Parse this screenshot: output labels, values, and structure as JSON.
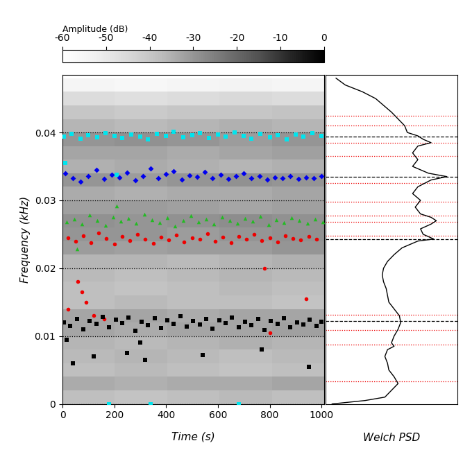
{
  "chart_data": [
    {
      "type": "heatmap_scatter",
      "xlabel": "Time (s)",
      "ylabel": "Frequency (kHz)",
      "xlim": [
        0,
        1010
      ],
      "ylim": [
        0,
        0.0485
      ],
      "xticks": [
        0,
        200,
        400,
        600,
        800,
        1000
      ],
      "yticks": [
        0,
        0.01,
        0.02,
        0.03,
        0.04
      ],
      "grid": "y",
      "cells": {
        "x_edges": [
          0,
          202,
          404,
          606,
          808,
          1010
        ],
        "y_edges": [
          0,
          0.002,
          0.004,
          0.006,
          0.008,
          0.01,
          0.012,
          0.014,
          0.016,
          0.018,
          0.02,
          0.022,
          0.024,
          0.026,
          0.028,
          0.03,
          0.032,
          0.034,
          0.036,
          0.038,
          0.04,
          0.042,
          0.044,
          0.046,
          0.048
        ],
        "values": [
          [
            -38,
            -39,
            -38,
            -37,
            -38
          ],
          [
            -34,
            -35,
            -34,
            -34,
            -33
          ],
          [
            -38,
            -37,
            -38,
            -39,
            -38
          ],
          [
            -37,
            -36,
            -37,
            -38,
            -37
          ],
          [
            -36,
            -37,
            -36,
            -35,
            -36
          ],
          [
            -33,
            -34,
            -33,
            -33,
            -32
          ],
          [
            -33,
            -33,
            -34,
            -33,
            -33
          ],
          [
            -38,
            -37,
            -38,
            -38,
            -39
          ],
          [
            -38,
            -39,
            -38,
            -37,
            -38
          ],
          [
            -37,
            -38,
            -37,
            -36,
            -37
          ],
          [
            -36,
            -36,
            -37,
            -36,
            -35
          ],
          [
            -31,
            -32,
            -31,
            -31,
            -30
          ],
          [
            -30,
            -30,
            -31,
            -30,
            -29
          ],
          [
            -29,
            -30,
            -29,
            -28,
            -29
          ],
          [
            -32,
            -31,
            -32,
            -33,
            -32
          ],
          [
            -34,
            -35,
            -34,
            -34,
            -33
          ],
          [
            -30,
            -31,
            -30,
            -29,
            -30
          ],
          [
            -35,
            -34,
            -35,
            -36,
            -35
          ],
          [
            -33,
            -33,
            -34,
            -33,
            -32
          ],
          [
            -30,
            -29,
            -30,
            -31,
            -30
          ],
          [
            -36,
            -37,
            -36,
            -35,
            -36
          ],
          [
            -40,
            -41,
            -40,
            -40,
            -39
          ],
          [
            -46,
            -47,
            -46,
            -45,
            -46
          ],
          [
            -55,
            -56,
            -55,
            -54,
            -55
          ]
        ]
      },
      "colorbar_label": "Amplitude (dB)",
      "colorbar_range": [
        -60,
        0
      ],
      "colorbar_ticks": [
        -60,
        -50,
        -40,
        -30,
        -20,
        -10,
        0
      ],
      "series": [
        {
          "color": "#00e5ee",
          "marker": "square",
          "x": [
            5,
            35,
            70,
            100,
            135,
            165,
            200,
            230,
            265,
            300,
            330,
            365,
            400,
            430,
            465,
            500,
            530,
            565,
            600,
            630,
            665,
            700,
            730,
            765,
            800,
            830,
            865,
            900,
            930,
            965,
            1000,
            10,
            180,
            340,
            680,
            210
          ],
          "values": [
            0.0394,
            0.0398,
            0.0391,
            0.0396,
            0.0393,
            0.0399,
            0.0395,
            0.0392,
            0.0397,
            0.0394,
            0.039,
            0.0398,
            0.0395,
            0.0401,
            0.0393,
            0.0396,
            0.0399,
            0.0392,
            0.0397,
            0.0394,
            0.04,
            0.0395,
            0.0391,
            0.0398,
            0.0393,
            0.0396,
            0.039,
            0.0397,
            0.0394,
            0.0399,
            0.0395,
            0.0355,
            0.0,
            0.0,
            0.0,
            0.0338
          ]
        },
        {
          "color": "#0000ee",
          "marker": "diamond",
          "x": [
            10,
            40,
            70,
            100,
            130,
            160,
            190,
            220,
            250,
            280,
            310,
            340,
            370,
            400,
            430,
            460,
            490,
            520,
            550,
            580,
            610,
            640,
            670,
            700,
            730,
            760,
            790,
            820,
            850,
            880,
            910,
            940,
            970,
            1000
          ],
          "values": [
            0.034,
            0.0333,
            0.0328,
            0.0336,
            0.0345,
            0.0332,
            0.0338,
            0.0334,
            0.0341,
            0.033,
            0.0336,
            0.0347,
            0.0333,
            0.0339,
            0.0343,
            0.0331,
            0.0337,
            0.0335,
            0.0342,
            0.0333,
            0.0338,
            0.0332,
            0.0336,
            0.034,
            0.0333,
            0.0336,
            0.0331,
            0.0334,
            0.0333,
            0.0336,
            0.0332,
            0.0334,
            0.0333,
            0.0336
          ]
        },
        {
          "color": "#22bb22",
          "marker": "triangle",
          "x": [
            15,
            45,
            75,
            105,
            135,
            165,
            195,
            225,
            255,
            285,
            315,
            345,
            375,
            405,
            435,
            465,
            495,
            525,
            555,
            585,
            615,
            645,
            675,
            705,
            735,
            765,
            795,
            825,
            855,
            885,
            915,
            945,
            975,
            1005,
            210,
            55
          ],
          "values": [
            0.0268,
            0.0272,
            0.0265,
            0.0278,
            0.027,
            0.0263,
            0.0275,
            0.0269,
            0.0273,
            0.0266,
            0.028,
            0.0271,
            0.0267,
            0.0274,
            0.0262,
            0.027,
            0.0277,
            0.0268,
            0.0272,
            0.0265,
            0.0275,
            0.027,
            0.0266,
            0.0273,
            0.0269,
            0.0276,
            0.0264,
            0.0271,
            0.0267,
            0.0274,
            0.027,
            0.0266,
            0.0272,
            0.0268,
            0.0292,
            0.0228
          ]
        },
        {
          "color": "#ee0000",
          "marker": "circle",
          "x": [
            20,
            50,
            80,
            110,
            140,
            170,
            200,
            230,
            260,
            290,
            320,
            350,
            380,
            410,
            440,
            470,
            500,
            530,
            560,
            590,
            620,
            650,
            680,
            710,
            740,
            770,
            800,
            830,
            860,
            890,
            920,
            950,
            980,
            60,
            75,
            90,
            120,
            160,
            780,
            940,
            20,
            800
          ],
          "values": [
            0.0245,
            0.024,
            0.0248,
            0.0238,
            0.0252,
            0.0244,
            0.0236,
            0.0247,
            0.0241,
            0.025,
            0.0243,
            0.0237,
            0.0246,
            0.0242,
            0.0249,
            0.0239,
            0.0245,
            0.0243,
            0.0251,
            0.024,
            0.0246,
            0.0238,
            0.0247,
            0.0243,
            0.025,
            0.0241,
            0.0245,
            0.0239,
            0.0248,
            0.0244,
            0.0242,
            0.0247,
            0.0243,
            0.018,
            0.0165,
            0.015,
            0.013,
            0.0125,
            0.02,
            0.0155,
            0.014,
            0.0105
          ]
        },
        {
          "color": "#000000",
          "marker": "square",
          "x": [
            5,
            30,
            55,
            80,
            105,
            130,
            155,
            180,
            205,
            230,
            255,
            280,
            305,
            330,
            355,
            380,
            405,
            430,
            455,
            480,
            505,
            530,
            555,
            580,
            605,
            630,
            655,
            680,
            705,
            730,
            755,
            780,
            805,
            830,
            855,
            880,
            905,
            930,
            955,
            980,
            1000,
            40,
            120,
            250,
            320,
            540,
            770,
            950,
            15,
            300
          ],
          "values": [
            0.012,
            0.0115,
            0.0125,
            0.011,
            0.0122,
            0.0118,
            0.0128,
            0.0113,
            0.0124,
            0.0119,
            0.0127,
            0.0108,
            0.0121,
            0.0116,
            0.0126,
            0.0112,
            0.0123,
            0.0118,
            0.0129,
            0.0114,
            0.0122,
            0.0117,
            0.0125,
            0.0111,
            0.0123,
            0.0119,
            0.0127,
            0.0113,
            0.0121,
            0.0116,
            0.0125,
            0.0109,
            0.0122,
            0.0118,
            0.0126,
            0.0113,
            0.012,
            0.0117,
            0.0124,
            0.0115,
            0.0121,
            0.006,
            0.007,
            0.0075,
            0.0065,
            0.0072,
            0.008,
            0.0055,
            0.0095,
            0.009
          ]
        }
      ]
    },
    {
      "type": "line",
      "xlabel": "Welch PSD",
      "tick_labels": false,
      "color": "#000000",
      "xlim": [
        0,
        100
      ],
      "ylim": [
        0,
        0.0485
      ],
      "x": [
        5,
        30,
        45,
        50,
        55,
        52,
        48,
        47,
        45,
        47,
        52,
        50,
        52,
        55,
        57,
        56,
        52,
        48,
        47,
        46,
        44,
        43,
        44,
        47,
        52,
        58,
        70,
        82,
        74,
        72,
        80,
        84,
        80,
        72,
        68,
        72,
        66,
        70,
        80,
        92,
        78,
        66,
        70,
        66,
        70,
        80,
        74,
        70,
        62,
        60,
        55,
        50,
        44,
        38,
        28,
        15,
        8
      ],
      "values": [
        0.0,
        0.0005,
        0.001,
        0.002,
        0.003,
        0.004,
        0.005,
        0.006,
        0.007,
        0.008,
        0.0085,
        0.009,
        0.01,
        0.011,
        0.012,
        0.013,
        0.014,
        0.015,
        0.016,
        0.017,
        0.018,
        0.019,
        0.02,
        0.021,
        0.022,
        0.023,
        0.024,
        0.0243,
        0.025,
        0.0258,
        0.0265,
        0.027,
        0.0275,
        0.028,
        0.029,
        0.03,
        0.031,
        0.032,
        0.033,
        0.0335,
        0.034,
        0.035,
        0.036,
        0.037,
        0.038,
        0.0385,
        0.039,
        0.0395,
        0.04,
        0.041,
        0.042,
        0.043,
        0.044,
        0.045,
        0.046,
        0.047,
        0.048
      ],
      "dashed_lines": [
        0.0394,
        0.0335,
        0.0243,
        0.0122
      ],
      "dashed_color": "#000000",
      "dotted_lines": [
        0.0425,
        0.041,
        0.0385,
        0.0365,
        0.0325,
        0.0298,
        0.0277,
        0.0268,
        0.0248,
        0.0131,
        0.0109,
        0.0087,
        0.0033
      ],
      "dotted_color": "#ee0000"
    }
  ]
}
